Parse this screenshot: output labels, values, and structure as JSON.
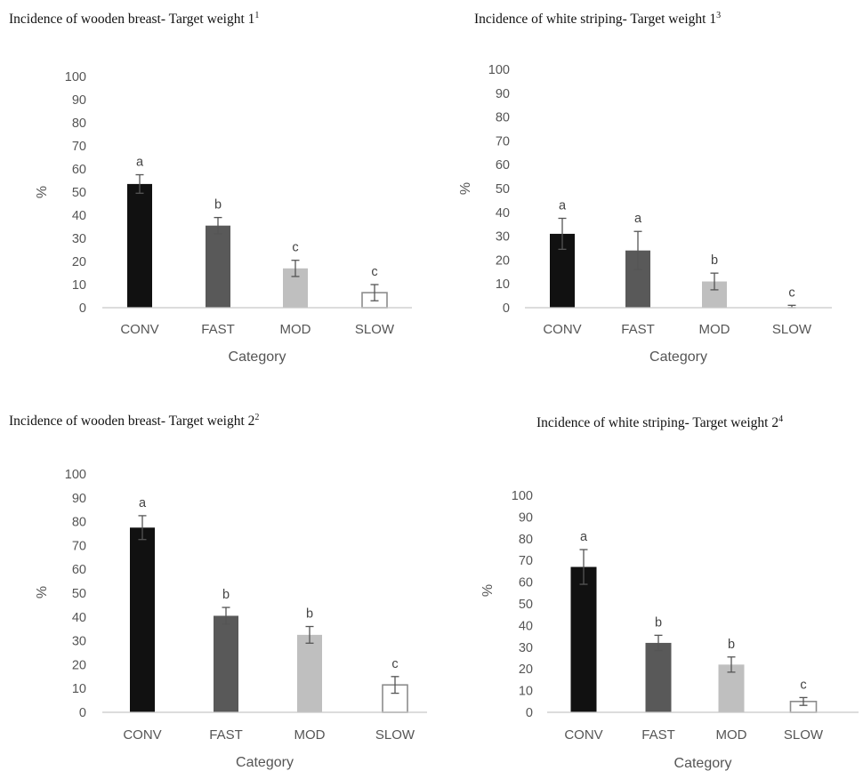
{
  "chart_data": [
    {
      "type": "bar",
      "title": "Incidence of wooden breast- Target weight 1",
      "title_sup": "1",
      "xlabel": "Category",
      "ylabel": "%",
      "ylim": [
        0,
        100
      ],
      "yticks": [
        0,
        10,
        20,
        30,
        40,
        50,
        60,
        70,
        80,
        90,
        100
      ],
      "grid": false,
      "categories": [
        "CONV",
        "FAST",
        "MOD",
        "SLOW"
      ],
      "values": [
        53.5,
        35.5,
        17,
        6.5
      ],
      "errors": [
        4,
        3.5,
        3.5,
        3.5
      ],
      "letters": [
        "a",
        "b",
        "c",
        "c"
      ],
      "colors": [
        "#111111",
        "#595959",
        "#bfbfbf",
        "#ffffff"
      ]
    },
    {
      "type": "bar",
      "title": "Incidence of white striping- Target weight 1",
      "title_sup": "3",
      "xlabel": "Category",
      "ylabel": "%",
      "ylim": [
        0,
        100
      ],
      "yticks": [
        0,
        10,
        20,
        30,
        40,
        50,
        60,
        70,
        80,
        90,
        100
      ],
      "grid": false,
      "categories": [
        "CONV",
        "FAST",
        "MOD",
        "SLOW"
      ],
      "values": [
        31,
        24,
        11,
        0
      ],
      "errors": [
        6.5,
        8,
        3.5,
        1
      ],
      "letters": [
        "a",
        "a",
        "b",
        "c"
      ],
      "colors": [
        "#111111",
        "#595959",
        "#bfbfbf",
        "#ffffff"
      ]
    },
    {
      "type": "bar",
      "title": "Incidence of wooden breast- Target weight 2",
      "title_sup": "2",
      "xlabel": "Category",
      "ylabel": "%",
      "ylim": [
        0,
        100
      ],
      "yticks": [
        0,
        10,
        20,
        30,
        40,
        50,
        60,
        70,
        80,
        90,
        100
      ],
      "grid": false,
      "categories": [
        "CONV",
        "FAST",
        "MOD",
        "SLOW"
      ],
      "values": [
        77.5,
        40.5,
        32.5,
        11.5
      ],
      "errors": [
        5,
        3.5,
        3.5,
        3.5
      ],
      "letters": [
        "a",
        "b",
        "b",
        "c"
      ],
      "colors": [
        "#111111",
        "#595959",
        "#bfbfbf",
        "#ffffff"
      ]
    },
    {
      "type": "bar",
      "title": "Incidence of white striping- Target weight 2",
      "title_sup": "4",
      "xlabel": "Category",
      "ylabel": "%",
      "ylim": [
        0,
        100
      ],
      "yticks": [
        0,
        10,
        20,
        30,
        40,
        50,
        60,
        70,
        80,
        90,
        100
      ],
      "grid": false,
      "categories": [
        "CONV",
        "FAST",
        "MOD",
        "SLOW"
      ],
      "values": [
        67,
        32,
        22,
        5
      ],
      "errors": [
        8,
        3.5,
        3.5,
        1.8
      ],
      "letters": [
        "a",
        "b",
        "b",
        "c"
      ],
      "colors": [
        "#111111",
        "#595959",
        "#bfbfbf",
        "#ffffff"
      ]
    }
  ]
}
